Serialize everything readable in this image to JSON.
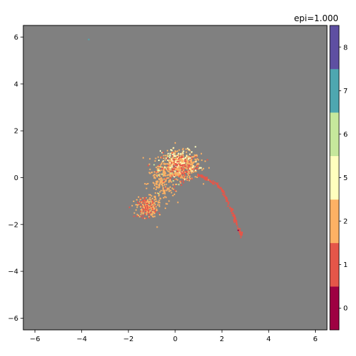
{
  "chart_data": {
    "type": "scatter",
    "title": "epi=1.000",
    "xlabel": "",
    "ylabel": "",
    "xlim": [
      -6.5,
      6.5
    ],
    "ylim": [
      -6.5,
      6.5
    ],
    "grid": false,
    "background": "#808080",
    "x_ticks": [
      "−6",
      "−4",
      "−2",
      "0",
      "2",
      "4",
      "6"
    ],
    "y_ticks": [
      "6",
      "4",
      "2",
      "0",
      "−2",
      "−4",
      "−6"
    ],
    "colorbar": {
      "labels": [
        "0",
        "1",
        "2",
        "5",
        "6",
        "7",
        "8"
      ],
      "colors": [
        "#9e0142",
        "#e55649",
        "#fdb164",
        "#ffffbe",
        "#c6e89c",
        "#4ea7b0",
        "#5e4fa2"
      ]
    },
    "clusters": [
      {
        "label": "2",
        "color": "#fdb164",
        "center": [
          0.2,
          0.5
        ],
        "spread": [
          0.45,
          0.3
        ],
        "n": 520
      },
      {
        "label": "2",
        "color": "#fdb164",
        "center": [
          -0.6,
          -0.3
        ],
        "spread": [
          0.3,
          0.45
        ],
        "n": 160
      },
      {
        "label": "2",
        "color": "#fdb164",
        "center": [
          -1.2,
          -1.25
        ],
        "spread": [
          0.22,
          0.22
        ],
        "n": 180
      },
      {
        "label": "5",
        "color": "#ffffbe",
        "center": [
          0.2,
          0.7
        ],
        "spread": [
          0.4,
          0.3
        ],
        "n": 90
      },
      {
        "label": "1",
        "color": "#e55649",
        "center": [
          0.2,
          0.4
        ],
        "spread": [
          0.45,
          0.3
        ],
        "n": 110
      },
      {
        "label": "1",
        "color": "#e55649",
        "center": [
          -1.2,
          -1.3
        ],
        "spread": [
          0.2,
          0.2
        ],
        "n": 60
      },
      {
        "label": "6",
        "color": "#c6e89c",
        "center": [
          -0.2,
          0.2
        ],
        "spread": [
          0.4,
          0.3
        ],
        "n": 12
      }
    ],
    "trajectory": {
      "label": "1",
      "color": "#e55649",
      "points": [
        [
          1.0,
          0.1
        ],
        [
          1.5,
          -0.1
        ],
        [
          1.9,
          -0.4
        ],
        [
          2.2,
          -0.9
        ],
        [
          2.5,
          -1.6
        ],
        [
          2.75,
          -2.3
        ],
        [
          2.85,
          -2.5
        ]
      ],
      "n": 160
    },
    "outliers": [
      {
        "label": "7",
        "color": "#4ea7b0",
        "x": -3.7,
        "y": 5.9
      },
      {
        "label": "0",
        "color": "#9e0142",
        "x": 2.7,
        "y": -2.25
      }
    ]
  }
}
